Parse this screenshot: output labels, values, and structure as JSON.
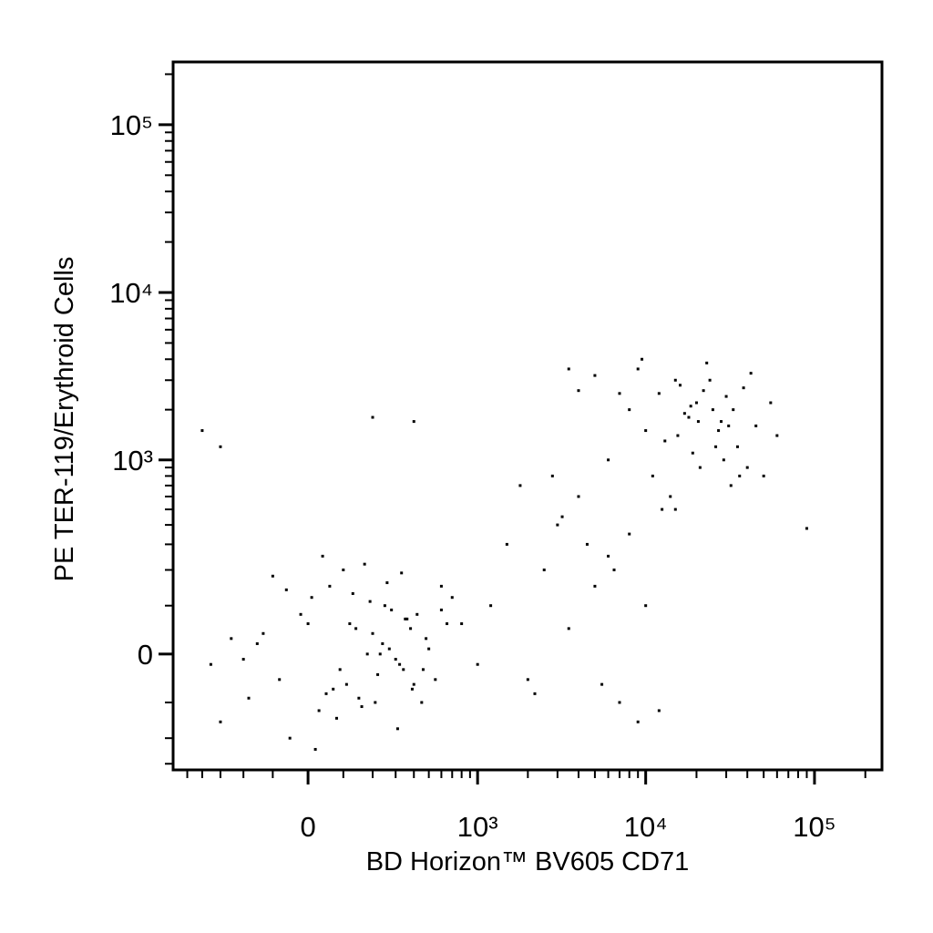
{
  "chart_data": {
    "type": "scatter",
    "xlabel": "BD Horizon™ BV605 CD71",
    "ylabel": "PE TER-119/Erythroid Cells",
    "xscale": "asinh",
    "xcofactor": 200,
    "yscale": "asinh",
    "ycofactor": 140,
    "xlim": [
      -614,
      251000
    ],
    "ylim": [
      -329,
      236600
    ],
    "xticks": [
      0,
      {
        "value": 1000,
        "label": "10³"
      },
      {
        "value": 10000,
        "label": "10⁴"
      },
      {
        "value": 100000,
        "label": "10⁵"
      }
    ],
    "yticks": [
      0,
      {
        "value": 1000,
        "label": "10³"
      },
      {
        "value": 10000,
        "label": "10⁴"
      },
      {
        "value": 100000,
        "label": "10⁵"
      }
    ],
    "xminor": [
      -500,
      -400,
      -300,
      -200,
      -100,
      100,
      200,
      300,
      400,
      500,
      600,
      700,
      800,
      900,
      2000,
      3000,
      4000,
      5000,
      6000,
      7000,
      8000,
      9000,
      20000,
      30000,
      40000,
      50000,
      60000,
      70000,
      80000,
      90000,
      200000
    ],
    "yminor": [
      -300,
      -200,
      -100,
      100,
      200,
      300,
      400,
      500,
      600,
      700,
      800,
      900,
      2000,
      3000,
      4000,
      5000,
      6000,
      7000,
      8000,
      9000,
      20000,
      30000,
      40000,
      50000,
      60000,
      70000,
      80000,
      90000,
      200000
    ],
    "color": "#000000",
    "x": [
      -150,
      -80,
      -20,
      30,
      60,
      90,
      120,
      150,
      200,
      250,
      300,
      350,
      400,
      -250,
      -300,
      10,
      50,
      100,
      180,
      220,
      280,
      320,
      380,
      450,
      500,
      -100,
      -50,
      0,
      70,
      130,
      160,
      240,
      260,
      340,
      420,
      -180,
      -130,
      40,
      80,
      110,
      190,
      230,
      310,
      360,
      480,
      550,
      600,
      -350,
      -60,
      20,
      140,
      210,
      270,
      330,
      390,
      460,
      650,
      700,
      -200,
      170,
      8000,
      10000,
      12000,
      15000,
      18000,
      20000,
      22000,
      25000,
      28000,
      30000,
      35000,
      40000,
      45000,
      50000,
      6000,
      7000,
      9000,
      11000,
      13000,
      16000,
      19000,
      24000,
      27000,
      33000,
      38000,
      14000,
      17000,
      21000,
      26000,
      32000,
      5000,
      4000,
      60000,
      55000,
      9500,
      12500,
      23000,
      29000,
      31000,
      42000,
      3500,
      15500,
      18500,
      20500,
      36000,
      1200,
      1500,
      2000,
      2500,
      3000,
      3500,
      4000,
      5000,
      6000,
      7000,
      8000,
      9000,
      10000,
      12000,
      15000,
      1800,
      2200,
      2800,
      3200,
      4500,
      5500,
      6500,
      800,
      1000,
      600,
      -400,
      -300,
      200,
      400,
      90000
    ],
    "y": [
      20,
      -50,
      80,
      -120,
      150,
      -30,
      60,
      -90,
      40,
      100,
      -10,
      70,
      -60,
      30,
      -150,
      120,
      -80,
      200,
      0,
      -40,
      90,
      -20,
      50,
      -100,
      10,
      180,
      -200,
      60,
      -70,
      130,
      -110,
      20,
      160,
      -30,
      80,
      -90,
      40,
      250,
      -140,
      -60,
      110,
      0,
      -170,
      70,
      30,
      -50,
      90,
      -20,
      140,
      -240,
      50,
      -100,
      10,
      190,
      -70,
      -30,
      60,
      120,
      -10,
      220,
      2000,
      1500,
      2500,
      3000,
      1800,
      2200,
      2600,
      2000,
      1700,
      2400,
      1200,
      900,
      1600,
      800,
      1000,
      2500,
      3500,
      800,
      1300,
      2800,
      1100,
      3000,
      1500,
      2000,
      2700,
      600,
      1900,
      900,
      1200,
      700,
      3200,
      2600,
      1400,
      2200,
      4000,
      500,
      3800,
      1000,
      1600,
      3300,
      3500,
      1400,
      2100,
      1700,
      800,
      100,
      300,
      -50,
      200,
      400,
      50,
      600,
      150,
      250,
      -100,
      350,
      -150,
      100,
      -120,
      500,
      700,
      -80,
      800,
      450,
      300,
      -60,
      200,
      60,
      -20,
      150,
      1500,
      1200,
      1800,
      1700,
      380
    ]
  }
}
